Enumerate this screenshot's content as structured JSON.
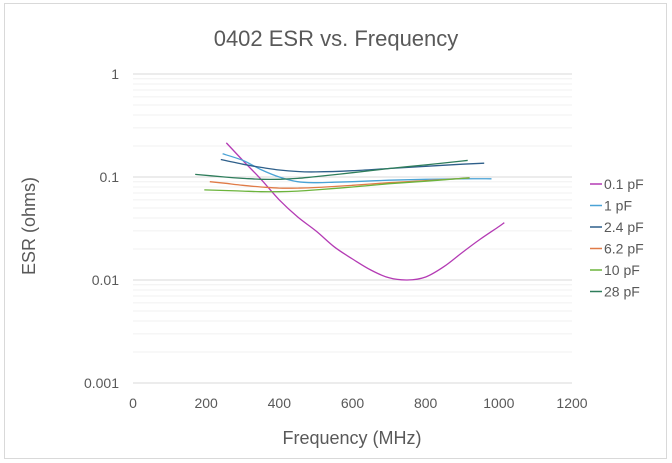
{
  "chart_data": {
    "type": "line",
    "title": "0402 ESR vs. Frequency",
    "xlabel": "Frequency (MHz)",
    "ylabel": "ESR (ohms)",
    "xlim": [
      0,
      1200
    ],
    "ylim": [
      0.001,
      1
    ],
    "y_scale": "log",
    "grid": true,
    "legend_position": "right",
    "x_ticks": [
      "0",
      "200",
      "400",
      "600",
      "800",
      "1000",
      "1200"
    ],
    "x_tick_values": [
      0,
      200,
      400,
      600,
      800,
      1000,
      1200
    ],
    "y_ticks": [
      "1",
      "0.1",
      "0.01",
      "0.001"
    ],
    "y_tick_values": [
      1,
      0.1,
      0.01,
      0.001
    ],
    "series": [
      {
        "name": "0.1 pF",
        "color": "#b43bb4",
        "points": [
          [
            255,
            0.215
          ],
          [
            300,
            0.145
          ],
          [
            350,
            0.095
          ],
          [
            400,
            0.06
          ],
          [
            450,
            0.041
          ],
          [
            500,
            0.03
          ],
          [
            550,
            0.021
          ],
          [
            600,
            0.016
          ],
          [
            650,
            0.0125
          ],
          [
            700,
            0.0105
          ],
          [
            750,
            0.01
          ],
          [
            800,
            0.0107
          ],
          [
            850,
            0.0135
          ],
          [
            900,
            0.0185
          ],
          [
            950,
            0.025
          ],
          [
            1000,
            0.033
          ],
          [
            1015,
            0.036
          ]
        ]
      },
      {
        "name": "1 pF",
        "color": "#4aa3d6",
        "points": [
          [
            245,
            0.168
          ],
          [
            300,
            0.145
          ],
          [
            350,
            0.118
          ],
          [
            400,
            0.1
          ],
          [
            450,
            0.09
          ],
          [
            500,
            0.088
          ],
          [
            550,
            0.089
          ],
          [
            600,
            0.09
          ],
          [
            700,
            0.093
          ],
          [
            800,
            0.095
          ],
          [
            900,
            0.096
          ],
          [
            980,
            0.096
          ]
        ]
      },
      {
        "name": "2.4 pF",
        "color": "#2e5f8a",
        "points": [
          [
            240,
            0.148
          ],
          [
            300,
            0.133
          ],
          [
            350,
            0.124
          ],
          [
            400,
            0.117
          ],
          [
            450,
            0.113
          ],
          [
            500,
            0.112
          ],
          [
            600,
            0.115
          ],
          [
            700,
            0.121
          ],
          [
            800,
            0.127
          ],
          [
            900,
            0.133
          ],
          [
            960,
            0.136
          ]
        ]
      },
      {
        "name": "6.2 pF",
        "color": "#e07b47",
        "points": [
          [
            210,
            0.09
          ],
          [
            250,
            0.087
          ],
          [
            300,
            0.083
          ],
          [
            350,
            0.08
          ],
          [
            400,
            0.078
          ],
          [
            450,
            0.078
          ],
          [
            500,
            0.079
          ],
          [
            600,
            0.083
          ],
          [
            700,
            0.088
          ],
          [
            800,
            0.092
          ],
          [
            900,
            0.097
          ],
          [
            920,
            0.098
          ]
        ]
      },
      {
        "name": "10 pF",
        "color": "#6cb43c",
        "points": [
          [
            195,
            0.075
          ],
          [
            250,
            0.074
          ],
          [
            300,
            0.073
          ],
          [
            350,
            0.072
          ],
          [
            400,
            0.072
          ],
          [
            450,
            0.073
          ],
          [
            500,
            0.075
          ],
          [
            600,
            0.08
          ],
          [
            700,
            0.086
          ],
          [
            800,
            0.091
          ],
          [
            900,
            0.097
          ],
          [
            920,
            0.098
          ]
        ]
      },
      {
        "name": "28 pF",
        "color": "#2e7d5b",
        "points": [
          [
            170,
            0.106
          ],
          [
            250,
            0.1
          ],
          [
            300,
            0.097
          ],
          [
            350,
            0.095
          ],
          [
            400,
            0.095
          ],
          [
            450,
            0.097
          ],
          [
            500,
            0.101
          ],
          [
            600,
            0.11
          ],
          [
            700,
            0.121
          ],
          [
            800,
            0.131
          ],
          [
            900,
            0.143
          ],
          [
            915,
            0.145
          ]
        ]
      }
    ]
  }
}
